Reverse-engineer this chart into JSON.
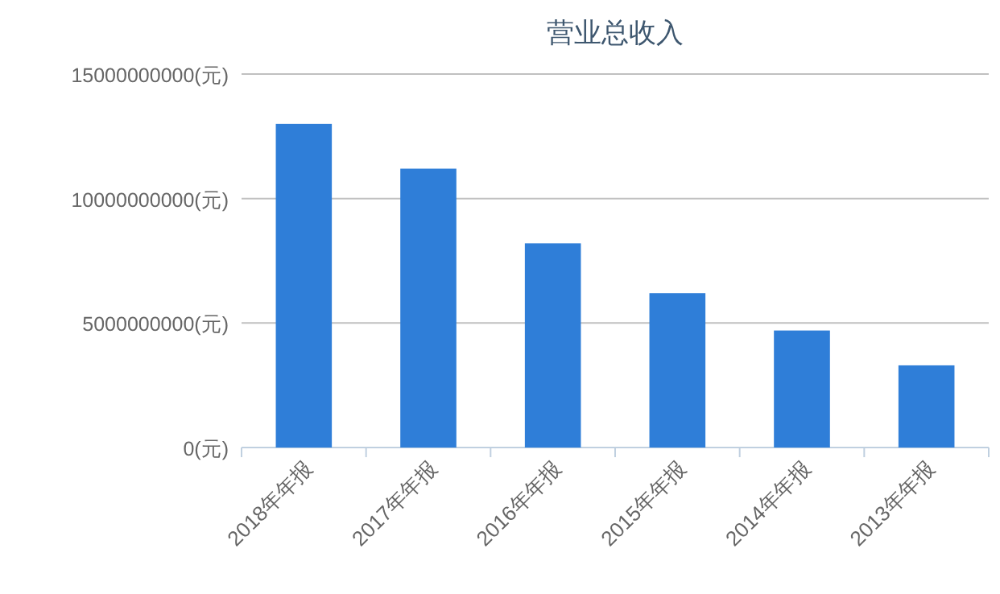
{
  "chart_data": {
    "type": "bar",
    "title": "营业总收入",
    "categories": [
      "2018年年报",
      "2017年年报",
      "2016年年报",
      "2015年年报",
      "2014年年报",
      "2013年年报"
    ],
    "series": [
      {
        "color": "#2f7ed8",
        "values": [
          13000000000,
          11200000000,
          8200000000,
          6200000000,
          4700000000,
          3300000000
        ]
      }
    ],
    "ylim": [
      0,
      15000000000
    ],
    "yticks": [
      {
        "value": 0,
        "label": "0(元)"
      },
      {
        "value": 5000000000,
        "label": "5000000000(元)"
      },
      {
        "value": 10000000000,
        "label": "10000000000(元)"
      },
      {
        "value": 15000000000,
        "label": "15000000000(元)"
      }
    ],
    "grid": "y"
  }
}
